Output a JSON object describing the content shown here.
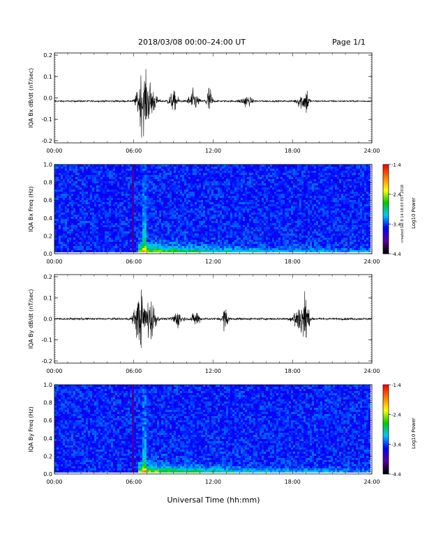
{
  "header": {
    "title": "2018/03/08   00:00–24:00 UT",
    "page": "Page 1/1"
  },
  "footer": {
    "xlabel": "Universal Time (hh:mm)",
    "credit": "created Sat 8 14:18:03 EST 2018"
  },
  "colors": {
    "colormap": [
      "#000000",
      "#5a00a0",
      "#0000ff",
      "#00c8ff",
      "#00c800",
      "#ffff00",
      "#ff8000",
      "#ff0000"
    ],
    "background_blue": "#2050e8",
    "trace": "#000000"
  },
  "chart_data": [
    {
      "type": "line",
      "name": "iqa-bx-dbdt",
      "ylabel": "IQA Bx dB/dt (nT/sec)",
      "x_ticks": [
        "00:00",
        "06:00",
        "12:00",
        "18:00",
        "24:00"
      ],
      "y_ticks": [
        "0.2",
        "0.1",
        "0.0",
        "-0.1",
        "-0.2"
      ],
      "xlim": [
        0,
        24
      ],
      "ylim": [
        -0.21,
        0.21
      ],
      "baseline": -0.015,
      "noise": 0.006,
      "bursts": [
        {
          "t": 6.6,
          "amp": 0.2,
          "width": 0.5
        },
        {
          "t": 7.2,
          "amp": 0.15,
          "width": 0.6
        },
        {
          "t": 9.0,
          "amp": 0.07,
          "width": 0.5
        },
        {
          "t": 10.5,
          "amp": 0.08,
          "width": 0.5
        },
        {
          "t": 11.7,
          "amp": 0.12,
          "width": 0.3
        },
        {
          "t": 14.5,
          "amp": 0.04,
          "width": 0.6
        },
        {
          "t": 18.7,
          "amp": 0.06,
          "width": 0.5
        },
        {
          "t": 19.1,
          "amp": 0.09,
          "width": 0.2
        }
      ]
    },
    {
      "type": "heatmap",
      "name": "iqa-bx-freq",
      "ylabel": "IQA Bx Freq (Hz)",
      "x_ticks": [
        "00:00",
        "06:00",
        "12:00",
        "18:00",
        "24:00"
      ],
      "y_ticks": [
        "1.0",
        "0.8",
        "0.6",
        "0.4",
        "0.2",
        "0.0"
      ],
      "xlim": [
        0,
        24
      ],
      "ylim": [
        0,
        1.0
      ],
      "colorbar": {
        "label": "Log10 Power",
        "ticks": [
          "-1.4",
          "-2.4",
          "-3.4",
          "-4.4"
        ],
        "range": [
          -4.4,
          -1.4
        ]
      },
      "event_start": 6.3,
      "event_peak": 6.8,
      "background_level": 0.52
    },
    {
      "type": "line",
      "name": "iqa-by-dbdt",
      "ylabel": "IQA By dB/dt (nT/sec)",
      "x_ticks": [
        "00:00",
        "06:00",
        "12:00",
        "18:00",
        "24:00"
      ],
      "y_ticks": [
        "0.2",
        "0.1",
        "0.0",
        "-0.1",
        "-0.2"
      ],
      "xlim": [
        0,
        24
      ],
      "ylim": [
        -0.21,
        0.21
      ],
      "baseline": 0.0,
      "noise": 0.008,
      "bursts": [
        {
          "t": 6.5,
          "amp": 0.2,
          "width": 0.6
        },
        {
          "t": 7.3,
          "amp": 0.16,
          "width": 0.5
        },
        {
          "t": 9.3,
          "amp": 0.06,
          "width": 0.5
        },
        {
          "t": 10.7,
          "amp": 0.06,
          "width": 0.4
        },
        {
          "t": 12.9,
          "amp": 0.09,
          "width": 0.3
        },
        {
          "t": 18.5,
          "amp": 0.12,
          "width": 0.6
        },
        {
          "t": 19.0,
          "amp": 0.2,
          "width": 0.3
        }
      ]
    },
    {
      "type": "heatmap",
      "name": "iqa-by-freq",
      "ylabel": "IQA By Freq (Hz)",
      "x_ticks": [
        "00:00",
        "06:00",
        "12:00",
        "18:00",
        "24:00"
      ],
      "y_ticks": [
        "1.0",
        "0.8",
        "0.6",
        "0.4",
        "0.2",
        "0.0"
      ],
      "xlim": [
        0,
        24
      ],
      "ylim": [
        0,
        1.0
      ],
      "colorbar": {
        "label": "Log10 Power",
        "ticks": [
          "-1.4",
          "-2.4",
          "-3.4",
          "-4.4"
        ],
        "range": [
          -4.4,
          -1.4
        ]
      },
      "event_start": 6.3,
      "event_peak": 6.8,
      "background_level": 0.52
    }
  ]
}
